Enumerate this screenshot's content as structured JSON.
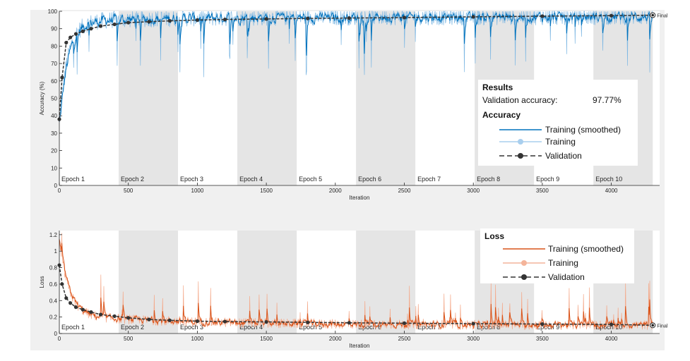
{
  "colors": {
    "acc_smoothed": "#0072bd",
    "acc_raw": "#7fb8e3",
    "loss_smoothed": "#d95319",
    "loss_raw": "#f4a98a",
    "validation": "#333333",
    "band": "#e5e5e5"
  },
  "results": {
    "title": "Results",
    "label": "Validation accuracy:",
    "value": "97.77%"
  },
  "chart_data": [
    {
      "type": "line",
      "title": "Accuracy",
      "xlabel": "Iteration",
      "ylabel": "Accuracy (%)",
      "xlim": [
        0,
        4350
      ],
      "ylim": [
        0,
        100
      ],
      "xticks": [
        0,
        500,
        1000,
        1500,
        2000,
        2500,
        3000,
        3500,
        4000
      ],
      "yticks": [
        0,
        10,
        20,
        30,
        40,
        50,
        60,
        70,
        80,
        90,
        100
      ],
      "epochs": [
        "Epoch 1",
        "Epoch 2",
        "Epoch 3",
        "Epoch 4",
        "Epoch 5",
        "Epoch 6",
        "Epoch 7",
        "Epoch 8",
        "Epoch 9",
        "Epoch 10"
      ],
      "epoch_length": 430,
      "final_label": "Final",
      "legend": [
        "Training (smoothed)",
        "Training",
        "Validation"
      ],
      "validation": {
        "x": [
          0,
          20,
          50,
          80,
          120,
          170,
          230,
          300,
          400,
          500,
          650,
          800,
          1000,
          1200,
          1500,
          1800,
          2100,
          2500,
          3000,
          3500,
          4000,
          4300
        ],
        "y": [
          38,
          62,
          82,
          85,
          87,
          88.5,
          90,
          91.5,
          92.5,
          93.5,
          94,
          94.5,
          95,
          95.3,
          95.6,
          95.9,
          96.1,
          96.4,
          96.8,
          97.2,
          97.5,
          97.77
        ]
      }
    },
    {
      "type": "line",
      "title": "Loss",
      "xlabel": "Iteration",
      "ylabel": "Loss",
      "xlim": [
        0,
        4350
      ],
      "ylim": [
        0,
        1.25
      ],
      "xticks": [
        0,
        500,
        1000,
        1500,
        2000,
        2500,
        3000,
        3500,
        4000
      ],
      "yticks": [
        0,
        0.2,
        0.4,
        0.6,
        0.8,
        1,
        1.2
      ],
      "epochs": [
        "Epoch 1",
        "Epoch 2",
        "Epoch 3",
        "Epoch 4",
        "Epoch 5",
        "Epoch 6",
        "Epoch 7",
        "Epoch 8",
        "Epoch 9",
        "Epoch 10"
      ],
      "epoch_length": 430,
      "final_label": "Final",
      "legend": [
        "Training (smoothed)",
        "Training",
        "Validation"
      ],
      "validation": {
        "x": [
          0,
          20,
          50,
          80,
          120,
          170,
          230,
          300,
          400,
          500,
          650,
          800,
          1000,
          1200,
          1500,
          1800,
          2100,
          2500,
          3000,
          3500,
          4000,
          4300
        ],
        "y": [
          0.83,
          0.6,
          0.43,
          0.37,
          0.32,
          0.29,
          0.26,
          0.23,
          0.21,
          0.19,
          0.17,
          0.16,
          0.15,
          0.145,
          0.14,
          0.135,
          0.13,
          0.125,
          0.12,
          0.115,
          0.11,
          0.1
        ]
      }
    }
  ]
}
